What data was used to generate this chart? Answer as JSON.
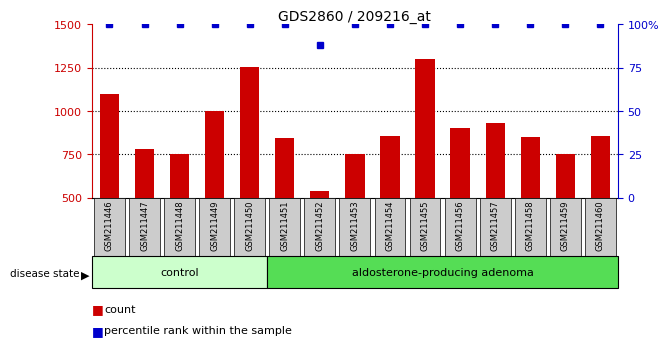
{
  "title": "GDS2860 / 209216_at",
  "samples": [
    "GSM211446",
    "GSM211447",
    "GSM211448",
    "GSM211449",
    "GSM211450",
    "GSM211451",
    "GSM211452",
    "GSM211453",
    "GSM211454",
    "GSM211455",
    "GSM211456",
    "GSM211457",
    "GSM211458",
    "GSM211459",
    "GSM211460"
  ],
  "counts": [
    1100,
    780,
    755,
    1000,
    1255,
    845,
    540,
    755,
    855,
    1300,
    900,
    930,
    850,
    755,
    855
  ],
  "percentile_vals": [
    100,
    100,
    100,
    100,
    100,
    100,
    88,
    100,
    100,
    100,
    100,
    100,
    100,
    100,
    100
  ],
  "control_count": 5,
  "adenoma_count": 10,
  "ylim_left": [
    500,
    1500
  ],
  "ylim_right": [
    0,
    100
  ],
  "yticks_left": [
    500,
    750,
    1000,
    1250,
    1500
  ],
  "yticks_right": [
    0,
    25,
    50,
    75,
    100
  ],
  "bar_color": "#cc0000",
  "dot_color": "#0000cc",
  "control_bg": "#ccffcc",
  "adenoma_bg": "#55dd55",
  "xticklabel_bg": "#cccccc",
  "left_axis_color": "#cc0000",
  "right_axis_color": "#0000cc",
  "legend_count_color": "#cc0000",
  "legend_pct_color": "#0000cc",
  "bar_width": 0.55
}
